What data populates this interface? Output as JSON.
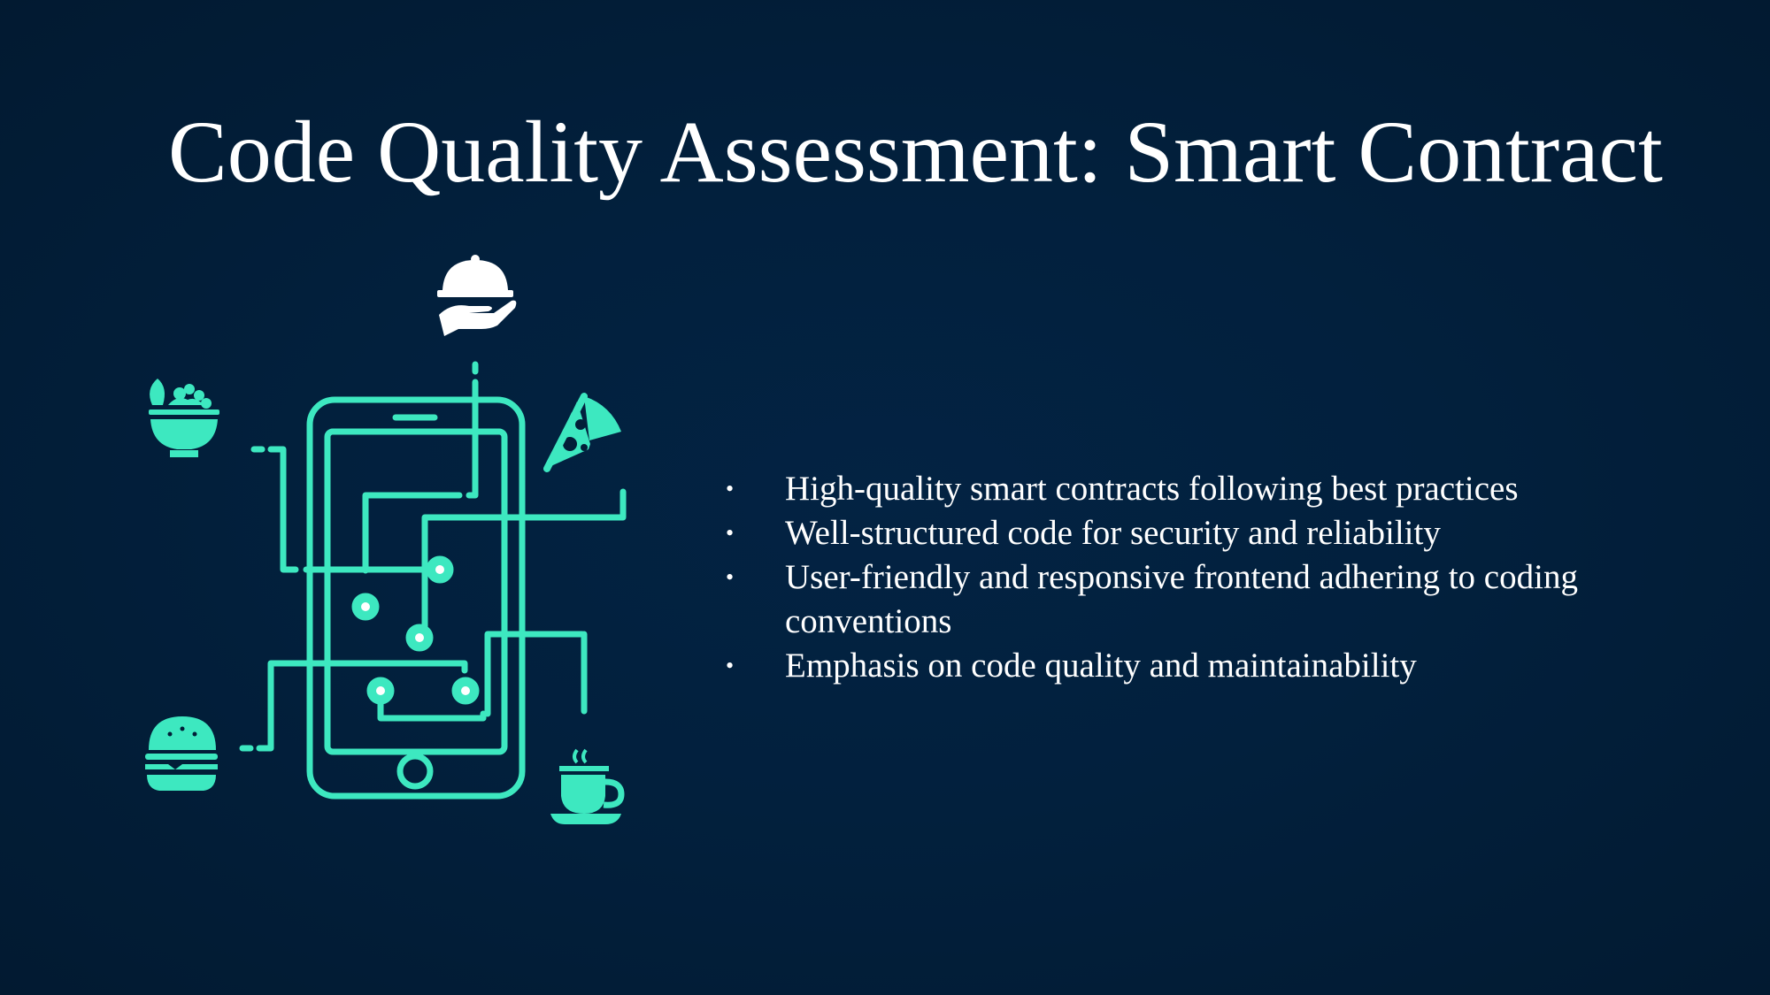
{
  "slide": {
    "title": "Code Quality Assessment: Smart Contract",
    "bullet_marker": "•",
    "bullets": [
      "High-quality smart contracts following best practices",
      "Well-structured code for security and reliability",
      "User-friendly and responsive frontend adhering to coding conventions",
      "Emphasis on code quality and maintainability"
    ]
  },
  "illustration": {
    "accent_color": "#3de8c0",
    "highlight_color": "#ffffff",
    "icons": [
      "cloche-serving-icon",
      "salad-bowl-icon",
      "pizza-slice-icon",
      "burger-icon",
      "coffee-cup-icon",
      "smartphone-icon"
    ]
  }
}
